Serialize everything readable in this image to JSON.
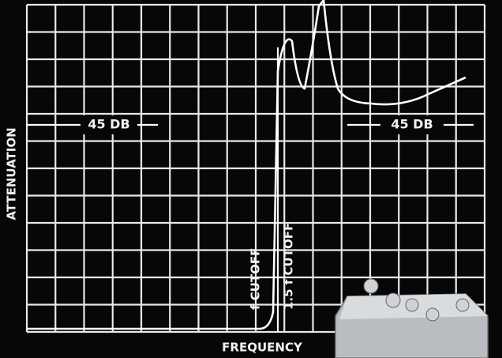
{
  "axes": {
    "y_label": "ATTENUATION",
    "x_label": "FREQUENCY"
  },
  "annotations": {
    "left_level": "45 DB",
    "right_level": "45 DB",
    "cutoff": "f CUTOFF",
    "cutoff_1_5": "1.5 f CUTOFF"
  }
}
